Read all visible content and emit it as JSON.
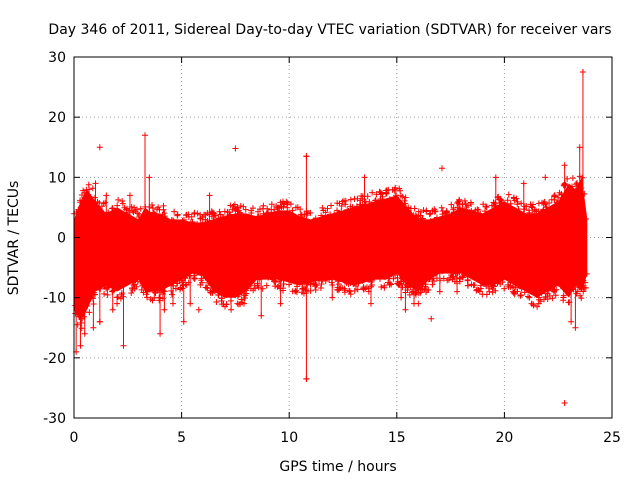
{
  "chart_data": {
    "type": "scatter",
    "title": "Day 346 of 2011, Sidereal Day-to-day VTEC variation (SDTVAR) for receiver vars",
    "xlabel": "GPS time / hours",
    "ylabel": "SDTVAR / TECUs",
    "xlim": [
      0,
      25
    ],
    "ylim": [
      -30,
      30
    ],
    "grid": true,
    "marker": "+",
    "series_color": "#ff0000",
    "x_ticks": [
      0,
      5,
      10,
      15,
      20,
      25
    ],
    "y_ticks": [
      -30,
      -20,
      -10,
      0,
      10,
      20,
      30
    ],
    "envelope": {
      "x": [
        0.0,
        0.3,
        0.6,
        1.0,
        1.5,
        2.0,
        2.5,
        3.0,
        3.3,
        3.6,
        4.0,
        4.5,
        5.0,
        5.5,
        6.0,
        6.5,
        7.0,
        7.5,
        8.0,
        8.5,
        9.0,
        9.5,
        10.0,
        10.5,
        11.0,
        11.5,
        12.0,
        12.5,
        13.0,
        13.5,
        14.0,
        14.5,
        15.0,
        15.5,
        16.0,
        16.5,
        17.0,
        17.5,
        18.0,
        18.5,
        19.0,
        19.5,
        20.0,
        20.5,
        21.0,
        21.5,
        22.0,
        22.5,
        23.0,
        23.3,
        23.6,
        23.85
      ],
      "upper": [
        3,
        6,
        8,
        6,
        4,
        5,
        4,
        3,
        5,
        4,
        4,
        3,
        3,
        2.5,
        2.5,
        3,
        3.5,
        4,
        4,
        3.5,
        4,
        4.5,
        4.5,
        3.5,
        3,
        3.5,
        4,
        4.5,
        5,
        5.5,
        6,
        6.5,
        7,
        5,
        3,
        3,
        3.5,
        4,
        5,
        4.5,
        4,
        5,
        6,
        5,
        4,
        4,
        5,
        6,
        9,
        8,
        10,
        3
      ],
      "lower": [
        -12,
        -14,
        -12,
        -9,
        -8,
        -9,
        -8,
        -7,
        -9,
        -9,
        -9,
        -8,
        -7,
        -6,
        -6.5,
        -9,
        -10,
        -10,
        -9,
        -7,
        -7,
        -7,
        -7.5,
        -8,
        -7.5,
        -7,
        -7,
        -7.5,
        -8,
        -7.5,
        -7,
        -7,
        -6,
        -8,
        -9,
        -7,
        -6,
        -6,
        -6,
        -7,
        -8,
        -8,
        -7,
        -8,
        -9,
        -10,
        -9,
        -8,
        -10,
        -8,
        -9,
        -6
      ]
    },
    "spikes": [
      [
        0.1,
        -19
      ],
      [
        0.3,
        -18
      ],
      [
        0.5,
        -16
      ],
      [
        0.7,
        8
      ],
      [
        0.9,
        -15
      ],
      [
        1.0,
        9
      ],
      [
        1.2,
        -14
      ],
      [
        1.5,
        7
      ],
      [
        1.8,
        -12
      ],
      [
        2.3,
        -18
      ],
      [
        2.6,
        7
      ],
      [
        3.3,
        17
      ],
      [
        3.5,
        10
      ],
      [
        4.0,
        -16
      ],
      [
        4.2,
        -12
      ],
      [
        4.6,
        -11
      ],
      [
        5.1,
        -14
      ],
      [
        5.4,
        -11
      ],
      [
        6.3,
        7
      ],
      [
        6.5,
        4
      ],
      [
        7.3,
        -12
      ],
      [
        7.6,
        5
      ],
      [
        7.9,
        -11
      ],
      [
        8.7,
        -13
      ],
      [
        9.6,
        -11
      ],
      [
        10.3,
        -6
      ],
      [
        10.8,
        -23.5
      ],
      [
        10.8,
        13.5
      ],
      [
        12.0,
        -10
      ],
      [
        12.6,
        -5
      ],
      [
        13.5,
        10
      ],
      [
        13.8,
        -11
      ],
      [
        14.4,
        6
      ],
      [
        15.2,
        -10
      ],
      [
        15.4,
        -12
      ],
      [
        15.8,
        -11
      ],
      [
        16.8,
        -6
      ],
      [
        17.0,
        -9
      ],
      [
        17.8,
        -9
      ],
      [
        18.3,
        -8
      ],
      [
        19.0,
        -7
      ],
      [
        19.6,
        10
      ],
      [
        20.4,
        -9
      ],
      [
        20.9,
        9
      ],
      [
        21.6,
        -11
      ],
      [
        22.3,
        -9
      ],
      [
        22.8,
        12
      ],
      [
        23.1,
        -14
      ],
      [
        23.3,
        -15
      ],
      [
        23.5,
        15
      ],
      [
        23.65,
        27.5
      ]
    ],
    "outliers": [
      [
        1.2,
        15
      ],
      [
        1.2,
        -14
      ],
      [
        7.5,
        14.8
      ],
      [
        10.8,
        13.5
      ],
      [
        10.8,
        -23.5
      ],
      [
        16.6,
        -13.5
      ],
      [
        17.1,
        11.5
      ],
      [
        22.8,
        -27.5
      ],
      [
        23.65,
        27.5
      ],
      [
        2.0,
        -11
      ],
      [
        5.8,
        -12
      ],
      [
        13.7,
        -9
      ],
      [
        16.0,
        -11
      ],
      [
        19.3,
        -9
      ],
      [
        21.9,
        10
      ]
    ]
  }
}
